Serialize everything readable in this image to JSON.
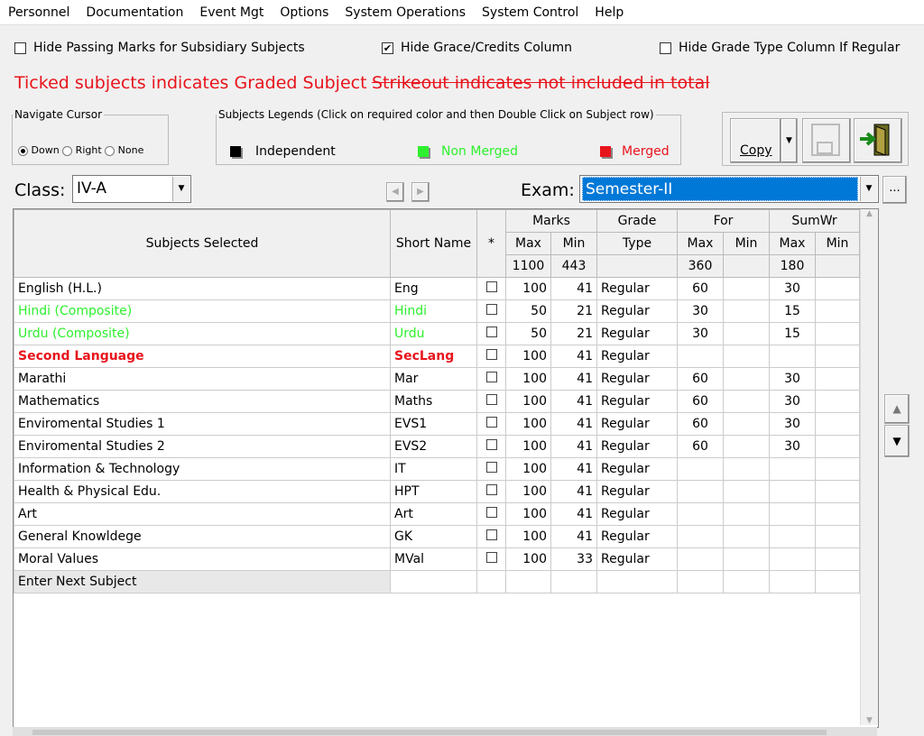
{
  "menu": [
    "Personnel",
    "Documentation",
    "Event Mgt",
    "Options",
    "System Operations",
    "System Control",
    "Help"
  ],
  "options": {
    "hide_passing": {
      "label": "Hide Passing Marks for Subsidiary Subjects",
      "checked": false
    },
    "hide_grace": {
      "label": "Hide Grace/Credits Column",
      "checked": true
    },
    "hide_grade_type": {
      "label": "Hide Grade Type Column If Regular",
      "checked": false
    }
  },
  "notes": {
    "ticked": "Ticked subjects indicates Graded Subject",
    "strikeout": "Strikeout indicates not included in total"
  },
  "navigate": {
    "title": "Navigate Cursor",
    "options": [
      "Down",
      "Right",
      "None"
    ],
    "selected": "Down"
  },
  "legends": {
    "title": "Subjects Legends (Click on required color and then Double Click on Subject row)",
    "items": [
      {
        "label": "Independent",
        "color": "#000000"
      },
      {
        "label": "Non Merged",
        "color": "#2ef02e"
      },
      {
        "label": "Merged",
        "color": "#e8141c"
      }
    ]
  },
  "toolbar": {
    "copy": "Copy"
  },
  "class": {
    "label": "Class:",
    "value": "IV-A"
  },
  "exam": {
    "label": "Exam:",
    "value": "Semester-II",
    "more": "..."
  },
  "table": {
    "headers": {
      "subjects": "Subjects Selected",
      "short": "Short Name",
      "star": "*",
      "marks": "Marks",
      "grade": "Grade",
      "for": "For",
      "sumwr": "SumWr",
      "max": "Max",
      "min": "Min",
      "type": "Type"
    },
    "totals": {
      "marks_max": "1100",
      "marks_min": "443",
      "for_max": "360",
      "sum_max": "180"
    },
    "rows": [
      [
        "English (H.L.)",
        "Eng",
        "100",
        "41",
        "Regular",
        "60",
        "",
        "30",
        "",
        "normal"
      ],
      [
        "Hindi (Composite)",
        "Hindi",
        "50",
        "21",
        "Regular",
        "30",
        "",
        "15",
        "",
        "green"
      ],
      [
        "Urdu (Composite)",
        "Urdu",
        "50",
        "21",
        "Regular",
        "30",
        "",
        "15",
        "",
        "green"
      ],
      [
        "Second Language",
        "SecLang",
        "100",
        "41",
        "Regular",
        "",
        "",
        "",
        "",
        "bold-red"
      ],
      [
        "Marathi",
        "Mar",
        "100",
        "41",
        "Regular",
        "60",
        "",
        "30",
        "",
        "normal"
      ],
      [
        "Mathematics",
        "Maths",
        "100",
        "41",
        "Regular",
        "60",
        "",
        "30",
        "",
        "normal"
      ],
      [
        "Enviromental Studies 1",
        "EVS1",
        "100",
        "41",
        "Regular",
        "60",
        "",
        "30",
        "",
        "normal"
      ],
      [
        "Enviromental Studies 2",
        "EVS2",
        "100",
        "41",
        "Regular",
        "60",
        "",
        "30",
        "",
        "normal"
      ],
      [
        "Information & Technology",
        "IT",
        "100",
        "41",
        "Regular",
        "",
        "",
        "",
        "",
        "normal"
      ],
      [
        "Health & Physical Edu.",
        "HPT",
        "100",
        "41",
        "Regular",
        "",
        "",
        "",
        "",
        "normal"
      ],
      [
        "Art",
        "Art",
        "100",
        "41",
        "Regular",
        "",
        "",
        "",
        "",
        "normal"
      ],
      [
        "General Knowldege",
        "GK",
        "100",
        "41",
        "Regular",
        "",
        "",
        "",
        "",
        "normal"
      ],
      [
        "Moral Values",
        "MVal",
        "100",
        "33",
        "Regular",
        "",
        "",
        "",
        "",
        "normal"
      ]
    ],
    "next_row": "Enter Next Subject"
  }
}
